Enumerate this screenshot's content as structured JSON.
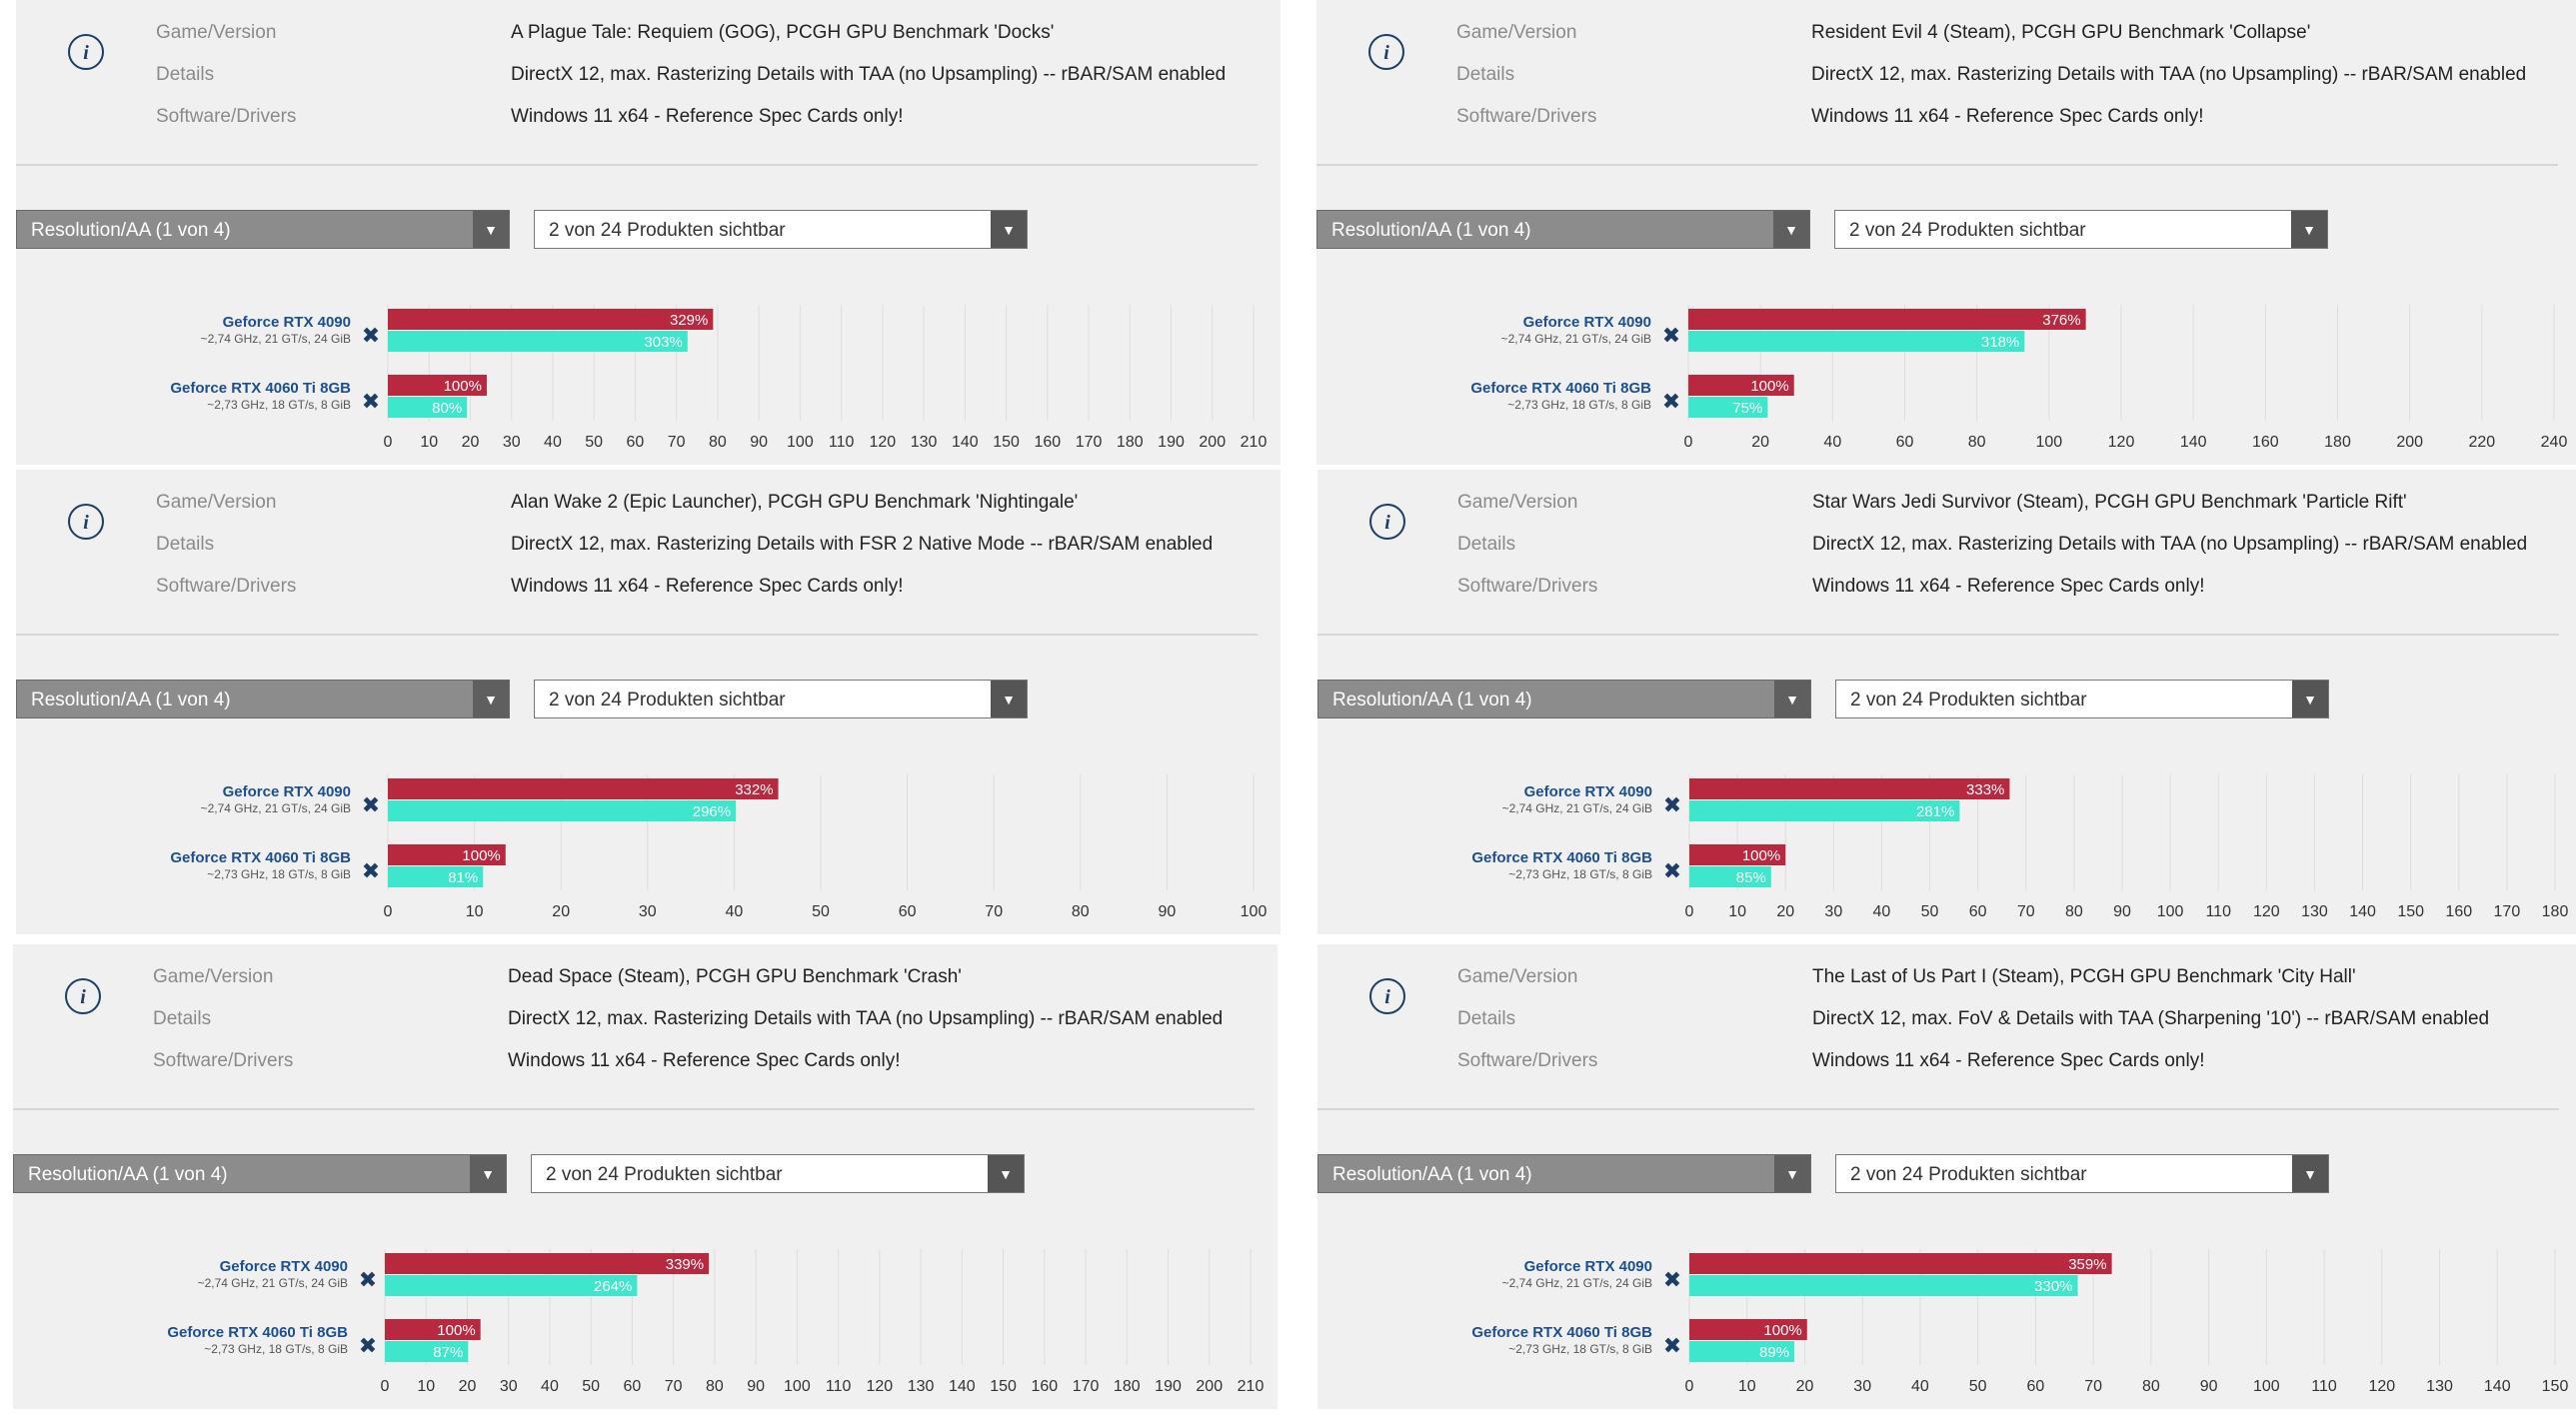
{
  "labels": {
    "game_version": "Game/Version",
    "details": "Details",
    "software_drivers": "Software/Drivers"
  },
  "colors": {
    "bar_primary": "#b8283f",
    "bar_secondary": "#3ee6cc",
    "grid": "#dddddd",
    "name": "#1d4e8f"
  },
  "icons": {
    "info": "info-circle-icon",
    "remove": "x-remove-icon",
    "dropdown": "triangle-down-icon"
  },
  "panels": [
    {
      "game": "A Plague Tale: Requiem (GOG), PCGH GPU Benchmark 'Docks'",
      "details": "DirectX 12, max. Rasterizing Details with TAA (no Upsampling) -- rBAR/SAM enabled",
      "software": "Windows 11 x64 - Reference Spec Cards only!",
      "resolution_select": "Resolution/AA (1 von 4)",
      "product_select": "2 von 24 Produkten sichtbar",
      "chart_data": {
        "type": "bar",
        "xlim": [
          0,
          210
        ],
        "ticks": [
          0,
          10,
          20,
          30,
          40,
          50,
          60,
          70,
          80,
          90,
          100,
          110,
          120,
          130,
          140,
          150,
          160,
          170,
          180,
          190,
          200,
          210
        ],
        "products": [
          {
            "name": "Geforce RTX 4090",
            "spec": "~2,74 GHz, 21 GT/s, 24 GiB",
            "values": [
              78.9,
              72.7
            ],
            "labels": [
              "329%",
              "303%"
            ]
          },
          {
            "name": "Geforce RTX 4060 Ti 8GB",
            "spec": "~2,73 GHz, 18 GT/s, 8 GiB",
            "values": [
              24.0,
              19.2
            ],
            "labels": [
              "100%",
              "80%"
            ]
          }
        ]
      }
    },
    {
      "game": "Resident Evil 4 (Steam), PCGH GPU Benchmark 'Collapse'",
      "details": "DirectX 12, max. Rasterizing Details with TAA (no Upsampling) -- rBAR/SAM enabled",
      "software": "Windows 11 x64 - Reference Spec Cards only!",
      "resolution_select": "Resolution/AA (1 von 4)",
      "product_select": "2 von 24 Produkten sichtbar",
      "chart_data": {
        "type": "bar",
        "xlim": [
          0,
          240
        ],
        "ticks": [
          0,
          20,
          40,
          60,
          80,
          100,
          120,
          140,
          160,
          180,
          200,
          220,
          240
        ],
        "products": [
          {
            "name": "Geforce RTX 4090",
            "spec": "~2,74 GHz, 21 GT/s, 24 GiB",
            "values": [
              110.2,
              93.2
            ],
            "labels": [
              "376%",
              "318%"
            ]
          },
          {
            "name": "Geforce RTX 4060 Ti 8GB",
            "spec": "~2,73 GHz, 18 GT/s, 8 GiB",
            "values": [
              29.3,
              22.0
            ],
            "labels": [
              "100%",
              "75%"
            ]
          }
        ]
      }
    },
    {
      "game": "Alan Wake 2 (Epic Launcher), PCGH GPU Benchmark 'Nightingale'",
      "details": "DirectX 12, max. Rasterizing Details with FSR 2 Native Mode -- rBAR/SAM enabled",
      "software": "Windows 11 x64 - Reference Spec Cards only!",
      "resolution_select": "Resolution/AA (1 von 4)",
      "product_select": "2 von 24 Produkten sichtbar",
      "chart_data": {
        "type": "bar",
        "xlim": [
          0,
          100
        ],
        "ticks": [
          0,
          10,
          20,
          30,
          40,
          50,
          60,
          70,
          80,
          90,
          100
        ],
        "products": [
          {
            "name": "Geforce RTX 4090",
            "spec": "~2,74 GHz, 21 GT/s, 24 GiB",
            "values": [
              45.1,
              40.2
            ],
            "labels": [
              "332%",
              "296%"
            ]
          },
          {
            "name": "Geforce RTX 4060 Ti 8GB",
            "spec": "~2,73 GHz, 18 GT/s, 8 GiB",
            "values": [
              13.6,
              11.0
            ],
            "labels": [
              "100%",
              "81%"
            ]
          }
        ]
      }
    },
    {
      "game": "Star Wars Jedi Survivor (Steam), PCGH GPU Benchmark 'Particle Rift'",
      "details": "DirectX 12, max. Rasterizing Details with TAA (no Upsampling) -- rBAR/SAM enabled",
      "software": "Windows 11 x64 - Reference Spec Cards only!",
      "resolution_select": "Resolution/AA (1 von 4)",
      "product_select": "2 von 24 Produkten sichtbar",
      "chart_data": {
        "type": "bar",
        "xlim": [
          0,
          180
        ],
        "ticks": [
          0,
          10,
          20,
          30,
          40,
          50,
          60,
          70,
          80,
          90,
          100,
          110,
          120,
          130,
          140,
          150,
          160,
          170,
          180
        ],
        "products": [
          {
            "name": "Geforce RTX 4090",
            "spec": "~2,74 GHz, 21 GT/s, 24 GiB",
            "values": [
              66.6,
              56.2
            ],
            "labels": [
              "333%",
              "281%"
            ]
          },
          {
            "name": "Geforce RTX 4060 Ti 8GB",
            "spec": "~2,73 GHz, 18 GT/s, 8 GiB",
            "values": [
              20.0,
              17.0
            ],
            "labels": [
              "100%",
              "85%"
            ]
          }
        ]
      }
    },
    {
      "game": "Dead Space (Steam), PCGH GPU Benchmark 'Crash'",
      "details": "DirectX 12, max. Rasterizing Details with TAA (no Upsampling) -- rBAR/SAM enabled",
      "software": "Windows 11 x64 - Reference Spec Cards only!",
      "resolution_select": "Resolution/AA (1 von 4)",
      "product_select": "2 von 24 Produkten sichtbar",
      "chart_data": {
        "type": "bar",
        "xlim": [
          0,
          210
        ],
        "ticks": [
          0,
          10,
          20,
          30,
          40,
          50,
          60,
          70,
          80,
          90,
          100,
          110,
          120,
          130,
          140,
          150,
          160,
          170,
          180,
          190,
          200,
          210
        ],
        "products": [
          {
            "name": "Geforce RTX 4090",
            "spec": "~2,74 GHz, 21 GT/s, 24 GiB",
            "values": [
              78.6,
              61.2
            ],
            "labels": [
              "339%",
              "264%"
            ]
          },
          {
            "name": "Geforce RTX 4060 Ti 8GB",
            "spec": "~2,73 GHz, 18 GT/s, 8 GiB",
            "values": [
              23.2,
              20.2
            ],
            "labels": [
              "100%",
              "87%"
            ]
          }
        ]
      }
    },
    {
      "game": "The Last of Us Part I (Steam), PCGH GPU Benchmark 'City Hall'",
      "details": "DirectX 12, max. FoV & Details with TAA (Sharpening '10') -- rBAR/SAM enabled",
      "software": "Windows 11 x64 - Reference Spec Cards only!",
      "resolution_select": "Resolution/AA (1 von 4)",
      "product_select": "2 von 24 Produkten sichtbar",
      "chart_data": {
        "type": "bar",
        "xlim": [
          0,
          150
        ],
        "ticks": [
          0,
          10,
          20,
          30,
          40,
          50,
          60,
          70,
          80,
          90,
          100,
          110,
          120,
          130,
          140,
          150
        ],
        "products": [
          {
            "name": "Geforce RTX 4090",
            "spec": "~2,74 GHz, 21 GT/s, 24 GiB",
            "values": [
              73.2,
              67.3
            ],
            "labels": [
              "359%",
              "330%"
            ]
          },
          {
            "name": "Geforce RTX 4060 Ti 8GB",
            "spec": "~2,73 GHz, 18 GT/s, 8 GiB",
            "values": [
              20.4,
              18.2
            ],
            "labels": [
              "100%",
              "89%"
            ]
          }
        ]
      }
    }
  ]
}
